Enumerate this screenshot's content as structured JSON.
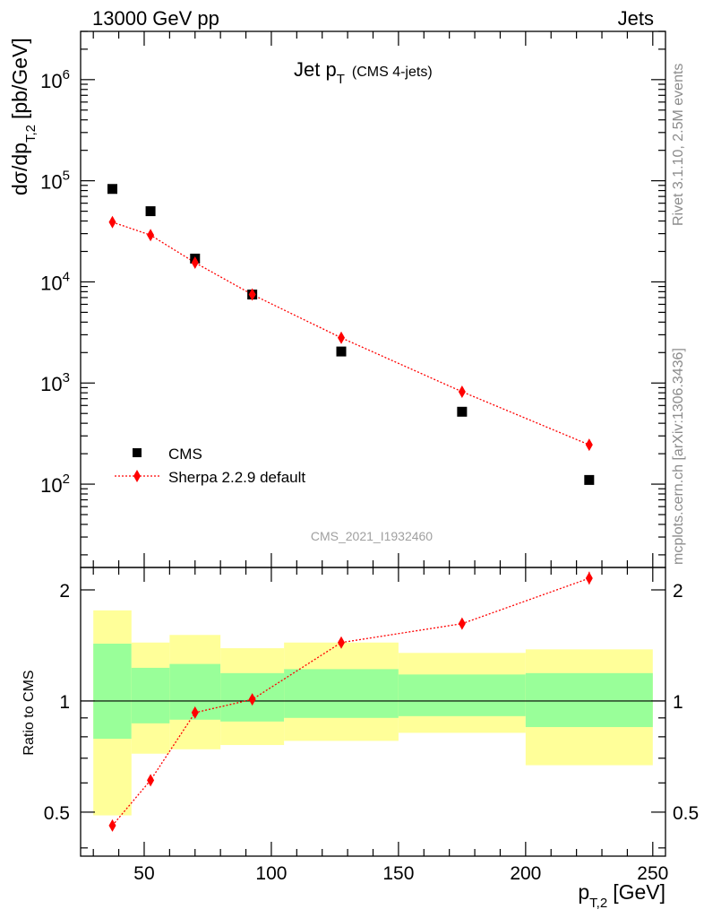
{
  "header": {
    "left": "13000 GeV pp",
    "right": "Jets"
  },
  "side_labels": {
    "rivet": "Rivet 3.1.10,  2.5M events",
    "mcplots": "mcplots.cern.ch [arXiv:1306.3436]"
  },
  "analysis_id": "CMS_2021_I1932460",
  "colors": {
    "data": "#000000",
    "mc": "#ff0000",
    "band_inner": "#99ff99",
    "band_outer": "#ffff99",
    "side_text": "#8c8c8c"
  },
  "chart_data": [
    {
      "type": "scatter",
      "title_main": "Jet p",
      "title_sub": "T",
      "title_extra": "(CMS 4-jets)",
      "ylabel_main": "dσ/dp",
      "ylabel_sub": "T,2",
      "ylabel_unit": "[pb/GeV]",
      "yscale": "log",
      "ylim": [
        15,
        3000000
      ],
      "xlim": [
        25,
        255
      ],
      "ytick_labels": [
        "10",
        "10",
        "10",
        "10",
        "10"
      ],
      "ytick_exponents": [
        "2",
        "3",
        "4",
        "5",
        "6"
      ],
      "ytick_values": [
        100,
        1000,
        10000,
        100000,
        1000000
      ],
      "legend_position": "lower-left",
      "series": [
        {
          "name": "CMS",
          "marker": "square",
          "x": [
            37.5,
            52.5,
            70,
            92.5,
            127.5,
            175,
            225
          ],
          "y": [
            83000,
            50000,
            17000,
            7500,
            2050,
            520,
            110
          ]
        },
        {
          "name": "Sherpa 2.2.9 default",
          "marker": "diamond",
          "line": "dotted",
          "x": [
            37.5,
            52.5,
            70,
            92.5,
            127.5,
            175,
            225
          ],
          "y": [
            39000,
            29000,
            15500,
            7500,
            2800,
            820,
            245
          ]
        }
      ]
    },
    {
      "type": "line",
      "ylabel": "Ratio to CMS",
      "xlabel_main": "p",
      "xlabel_sub": "T,2",
      "xlabel_unit": "[GeV]",
      "ylim": [
        0.38,
        2.3
      ],
      "xlim": [
        25,
        255
      ],
      "xtick_labels": [
        "50",
        "100",
        "150",
        "200",
        "250"
      ],
      "xtick_values": [
        50,
        100,
        150,
        200,
        250
      ],
      "ytick_labels": [
        "0.5",
        "1",
        "2"
      ],
      "ytick_values": [
        0.5,
        1,
        2
      ],
      "reference_line": 1,
      "bands": [
        {
          "x_low": 30,
          "x_high": 45,
          "inner_low": 0.79,
          "inner_high": 1.43,
          "outer_low": 0.49,
          "outer_high": 1.76
        },
        {
          "x_low": 45,
          "x_high": 60,
          "inner_low": 0.87,
          "inner_high": 1.23,
          "outer_low": 0.72,
          "outer_high": 1.44
        },
        {
          "x_low": 60,
          "x_high": 80,
          "inner_low": 0.89,
          "inner_high": 1.26,
          "outer_low": 0.74,
          "outer_high": 1.51
        },
        {
          "x_low": 80,
          "x_high": 105,
          "inner_low": 0.88,
          "inner_high": 1.19,
          "outer_low": 0.76,
          "outer_high": 1.39
        },
        {
          "x_low": 105,
          "x_high": 150,
          "inner_low": 0.9,
          "inner_high": 1.22,
          "outer_low": 0.78,
          "outer_high": 1.44
        },
        {
          "x_low": 150,
          "x_high": 200,
          "inner_low": 0.91,
          "inner_high": 1.18,
          "outer_low": 0.82,
          "outer_high": 1.35
        },
        {
          "x_low": 200,
          "x_high": 250,
          "inner_low": 0.85,
          "inner_high": 1.19,
          "outer_low": 0.67,
          "outer_high": 1.38
        }
      ],
      "series": [
        {
          "name": "Sherpa 2.2.9 default",
          "x": [
            37.5,
            52.5,
            70,
            92.5,
            127.5,
            175,
            225
          ],
          "y": [
            0.46,
            0.61,
            0.93,
            1.01,
            1.44,
            1.62,
            2.15
          ],
          "err": [
            0.01,
            0.01,
            0.01,
            0.01,
            0.01,
            0.05,
            0.09
          ]
        }
      ]
    }
  ]
}
